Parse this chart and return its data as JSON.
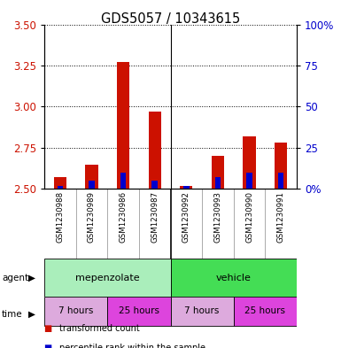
{
  "title": "GDS5057 / 10343615",
  "samples": [
    "GSM1230988",
    "GSM1230989",
    "GSM1230986",
    "GSM1230987",
    "GSM1230992",
    "GSM1230993",
    "GSM1230990",
    "GSM1230991"
  ],
  "red_values": [
    2.57,
    2.65,
    3.27,
    2.97,
    2.52,
    2.7,
    2.82,
    2.78
  ],
  "blue_values": [
    2.0,
    5.0,
    10.0,
    5.0,
    2.0,
    7.0,
    10.0,
    10.0
  ],
  "ylim_left": [
    2.5,
    3.5
  ],
  "ylim_right": [
    0,
    100
  ],
  "yticks_left": [
    2.5,
    2.75,
    3.0,
    3.25,
    3.5
  ],
  "yticks_right": [
    0,
    25,
    50,
    75,
    100
  ],
  "bar_base": 2.5,
  "agent_labels": [
    "mepenzolate",
    "vehicle"
  ],
  "agent_colors": [
    "#aaeebb",
    "#44dd55"
  ],
  "time_labels": [
    "7 hours",
    "25 hours",
    "7 hours",
    "25 hours"
  ],
  "time_colors": [
    "#ddaadd",
    "#dd44dd",
    "#ddaadd",
    "#dd44dd"
  ],
  "legend_red": "transformed count",
  "legend_blue": "percentile rank within the sample",
  "red_color": "#cc1100",
  "blue_color": "#0000cc",
  "bg_color": "#ffffff",
  "plot_bg": "#ffffff",
  "label_color_left": "#cc1100",
  "label_color_right": "#0000cc",
  "sample_bg": "#cccccc",
  "grid_linestyle": ":",
  "grid_color": "black"
}
